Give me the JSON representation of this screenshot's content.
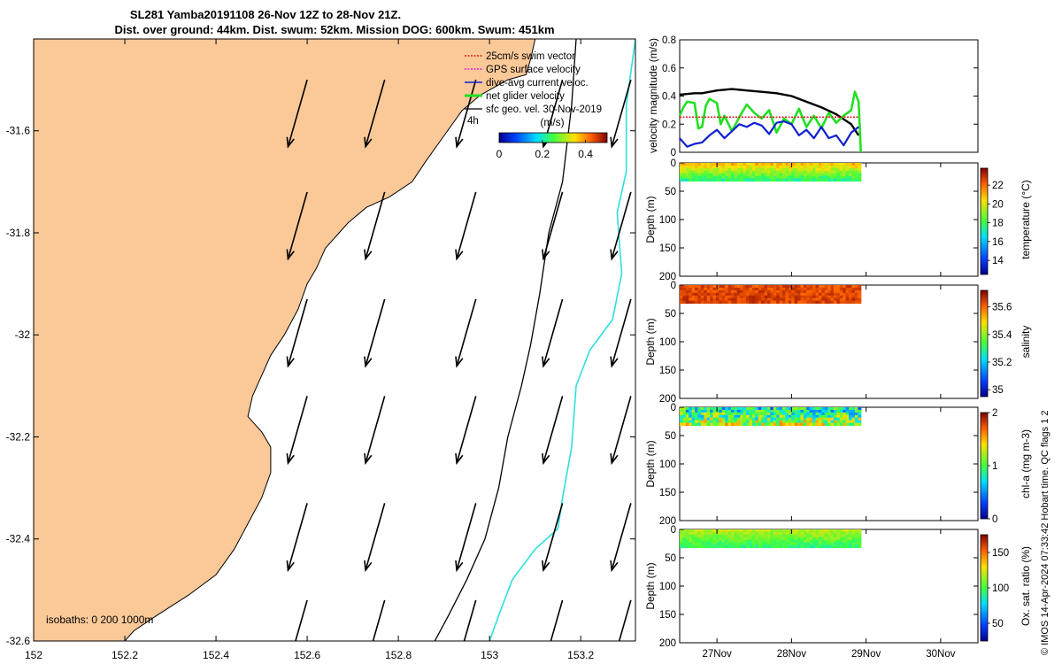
{
  "header": {
    "title": "SL281 Yamba20191108 26-Nov 12Z to 28-Nov 21Z.",
    "subtitle": "Dist. over ground: 44km. Dist. swum: 52km. Mission DOG: 600km. Swum: 451km"
  },
  "colors": {
    "land": "#fbc998",
    "isobath_200": "#000000",
    "isobath_1000": "#2de0dc",
    "total_speed": "#000000",
    "net_glider": "#22e022",
    "dive_avg": "#1020d0",
    "swim_vector": "#e02020",
    "gps_surface": "#e020e0"
  },
  "side_note": "© IMOS 14-Apr-2024 07:33:42 Hobart time. QC flags 1  2",
  "chart_data": [
    {
      "type": "map",
      "x_ticks": [
        "152",
        "152.2",
        "152.4",
        "152.6",
        "152.8",
        "153",
        "153.2"
      ],
      "x_tick_values": [
        152,
        152.2,
        152.4,
        152.6,
        152.8,
        153,
        153.2
      ],
      "y_ticks": [
        "-31.6",
        "-31.8",
        "-32",
        "-32.2",
        "-32.4",
        "-32.6"
      ],
      "y_tick_values": [
        -31.6,
        -31.8,
        -32,
        -32.2,
        -32.4,
        -32.6
      ],
      "xlim": [
        152,
        153.32
      ],
      "ylim": [
        -32.6,
        -31.42
      ],
      "legend": {
        "placement": "top-right",
        "items": [
          "25cm/s swim vector",
          "GPS surface velocity",
          "dive-avg current veloc.",
          "net glider velocity",
          "sfc geo. vel. 30-Nov-2019"
        ],
        "time_step_label": "4h"
      },
      "colorbar": {
        "label": "(m/s)",
        "ticks": [
          "0",
          "0.2",
          "0.4"
        ],
        "tick_values": [
          0,
          0.2,
          0.4
        ],
        "range": [
          0,
          0.5
        ]
      },
      "isobaths_label": "isobaths: 0   200  1000m",
      "coast": [
        [
          153.1,
          -31.42
        ],
        [
          153.09,
          -31.46
        ],
        [
          153.08,
          -31.49
        ],
        [
          153.04,
          -31.5
        ],
        [
          152.98,
          -31.53
        ],
        [
          152.94,
          -31.56
        ],
        [
          152.9,
          -31.61
        ],
        [
          152.86,
          -31.66
        ],
        [
          152.83,
          -31.7
        ],
        [
          152.78,
          -31.73
        ],
        [
          152.73,
          -31.75
        ],
        [
          152.69,
          -31.78
        ],
        [
          152.67,
          -31.8
        ],
        [
          152.64,
          -31.83
        ],
        [
          152.62,
          -31.87
        ],
        [
          152.6,
          -31.9
        ],
        [
          152.58,
          -31.95
        ],
        [
          152.55,
          -32.0
        ],
        [
          152.52,
          -32.04
        ],
        [
          152.5,
          -32.08
        ],
        [
          152.48,
          -32.12
        ],
        [
          152.47,
          -32.16
        ],
        [
          152.5,
          -32.19
        ],
        [
          152.52,
          -32.22
        ],
        [
          152.52,
          -32.27
        ],
        [
          152.5,
          -32.32
        ],
        [
          152.47,
          -32.37
        ],
        [
          152.44,
          -32.42
        ],
        [
          152.4,
          -32.47
        ],
        [
          152.34,
          -32.51
        ],
        [
          152.27,
          -32.55
        ],
        [
          152.22,
          -32.58
        ],
        [
          152.2,
          -32.6
        ]
      ],
      "isobath_200": [
        [
          153.19,
          -31.42
        ],
        [
          153.18,
          -31.55
        ],
        [
          153.16,
          -31.7
        ],
        [
          153.13,
          -31.8
        ],
        [
          153.11,
          -31.92
        ],
        [
          153.09,
          -32.02
        ],
        [
          153.07,
          -32.1
        ],
        [
          153.04,
          -32.2
        ],
        [
          153.02,
          -32.3
        ],
        [
          152.99,
          -32.4
        ],
        [
          152.95,
          -32.48
        ],
        [
          152.91,
          -32.55
        ],
        [
          152.88,
          -32.6
        ]
      ],
      "isobath_1000": [
        [
          153.32,
          -31.42
        ],
        [
          153.3,
          -31.55
        ],
        [
          153.3,
          -31.68
        ],
        [
          153.28,
          -31.76
        ],
        [
          153.29,
          -31.88
        ],
        [
          153.27,
          -31.97
        ],
        [
          153.22,
          -32.03
        ],
        [
          153.19,
          -32.1
        ],
        [
          153.18,
          -32.22
        ],
        [
          153.16,
          -32.32
        ],
        [
          153.15,
          -32.38
        ],
        [
          153.1,
          -32.42
        ],
        [
          153.05,
          -32.48
        ],
        [
          153.02,
          -32.55
        ],
        [
          153.0,
          -32.6
        ]
      ],
      "current_arrows": {
        "lons": [
          152.6,
          152.77,
          152.97,
          153.16,
          153.31
        ],
        "lats": [
          -31.5,
          -31.72,
          -31.93,
          -32.12,
          -32.33,
          -32.52
        ],
        "u": -0.12,
        "v": -0.42
      }
    },
    {
      "type": "line",
      "ylabel": "velocity magnitude (m/s)",
      "ylim": [
        0,
        0.8
      ],
      "y_ticks": [
        "0",
        "0.2",
        "0.4",
        "0.6",
        "0.8"
      ],
      "y_tick_values": [
        0,
        0.2,
        0.4,
        0.6,
        0.8
      ],
      "xlim": [
        26.5,
        30.5
      ],
      "series": [
        {
          "x": [
            26.5,
            26.7,
            26.8,
            27.0,
            27.2,
            27.4,
            27.6,
            27.8,
            28.0,
            28.2,
            28.4,
            28.6,
            28.8,
            28.9
          ],
          "y": [
            0.41,
            0.42,
            0.42,
            0.44,
            0.45,
            0.44,
            0.43,
            0.42,
            0.4,
            0.36,
            0.32,
            0.27,
            0.2,
            0.12
          ]
        },
        {
          "x": [
            26.5,
            26.55,
            26.6,
            26.7,
            26.75,
            26.8,
            26.85,
            26.9,
            27.0,
            27.05,
            27.1,
            27.2,
            27.3,
            27.4,
            27.5,
            27.6,
            27.7,
            27.8,
            27.9,
            28.0,
            28.1,
            28.2,
            28.3,
            28.4,
            28.5,
            28.6,
            28.7,
            28.8,
            28.85,
            28.9,
            28.93
          ],
          "y": [
            0.26,
            0.32,
            0.36,
            0.35,
            0.17,
            0.18,
            0.33,
            0.38,
            0.35,
            0.2,
            0.26,
            0.15,
            0.25,
            0.34,
            0.28,
            0.24,
            0.3,
            0.14,
            0.24,
            0.2,
            0.31,
            0.18,
            0.26,
            0.17,
            0.28,
            0.21,
            0.26,
            0.3,
            0.43,
            0.36,
            0.0
          ]
        },
        {
          "x": [
            26.5,
            26.6,
            26.7,
            26.8,
            26.9,
            27.0,
            27.1,
            27.2,
            27.3,
            27.4,
            27.5,
            27.6,
            27.7,
            27.8,
            27.9,
            28.0,
            28.1,
            28.2,
            28.3,
            28.4,
            28.5,
            28.6,
            28.7,
            28.8,
            28.9
          ],
          "y": [
            0.1,
            0.04,
            0.06,
            0.07,
            0.12,
            0.16,
            0.1,
            0.15,
            0.2,
            0.18,
            0.21,
            0.19,
            0.13,
            0.21,
            0.22,
            0.2,
            0.12,
            0.16,
            0.1,
            0.18,
            0.1,
            0.12,
            0.05,
            0.14,
            0.18
          ]
        },
        {
          "x": [
            26.5,
            28.9
          ],
          "y": [
            0.25,
            0.25
          ]
        }
      ]
    },
    {
      "type": "heatmap",
      "ylabel": "Depth (m)",
      "colorbar_label": "temperature (°C)",
      "colorbar_ticks": [
        "14",
        "16",
        "18",
        "20",
        "22"
      ],
      "colorbar_tick_values": [
        14,
        16,
        18,
        20,
        22
      ],
      "colorbar_range": [
        12.5,
        23.8
      ],
      "ylim": [
        0,
        200
      ],
      "y_ticks": [
        "0",
        "50",
        "100",
        "150",
        "200"
      ],
      "y_tick_values": [
        0,
        50,
        100,
        150,
        200
      ],
      "x_range": [
        26.5,
        28.93
      ],
      "depth_range": [
        0,
        32
      ],
      "surface_value": 20.8,
      "bottom_value": 17.6,
      "variability": 0.7
    },
    {
      "type": "heatmap",
      "ylabel": "Depth (m)",
      "colorbar_label": "salinity",
      "colorbar_ticks": [
        "35",
        "35.2",
        "35.4",
        "35.6"
      ],
      "colorbar_tick_values": [
        35,
        35.2,
        35.4,
        35.6
      ],
      "colorbar_range": [
        34.95,
        35.72
      ],
      "ylim": [
        0,
        200
      ],
      "y_ticks": [
        "0",
        "50",
        "100",
        "150",
        "200"
      ],
      "y_tick_values": [
        0,
        50,
        100,
        150,
        200
      ],
      "x_range": [
        26.5,
        28.93
      ],
      "depth_range": [
        0,
        32
      ],
      "surface_value": 35.63,
      "bottom_value": 35.64,
      "variability": 0.04
    },
    {
      "type": "heatmap",
      "ylabel": "Depth (m)",
      "colorbar_label": "chl-a (mg m-3)",
      "colorbar_ticks": [
        "0",
        "1",
        "2"
      ],
      "colorbar_tick_values": [
        0,
        1,
        2
      ],
      "colorbar_range": [
        0,
        2
      ],
      "ylim": [
        0,
        200
      ],
      "y_ticks": [
        "0",
        "50",
        "100",
        "150",
        "200"
      ],
      "y_tick_values": [
        0,
        50,
        100,
        150,
        200
      ],
      "x_range": [
        26.5,
        28.93
      ],
      "depth_range": [
        0,
        32
      ],
      "surface_value": 0.8,
      "bottom_value": 1.2,
      "variability": 0.45
    },
    {
      "type": "heatmap",
      "ylabel": "Depth (m)",
      "colorbar_label": "Ox. sat. ratio (%)",
      "colorbar_ticks": [
        "50",
        "100",
        "150"
      ],
      "colorbar_tick_values": [
        50,
        100,
        150
      ],
      "colorbar_range": [
        25,
        175
      ],
      "ylim": [
        0,
        200
      ],
      "y_ticks": [
        "0",
        "50",
        "100",
        "150",
        "200"
      ],
      "y_tick_values": [
        0,
        50,
        100,
        150,
        200
      ],
      "x_range": [
        26.5,
        28.93
      ],
      "depth_range": [
        0,
        32
      ],
      "surface_value": 118,
      "bottom_value": 95,
      "variability": 8,
      "x_ticks": [
        "27Nov",
        "28Nov",
        "29Nov",
        "30Nov"
      ],
      "x_tick_values": [
        27,
        28,
        29,
        30
      ]
    }
  ]
}
